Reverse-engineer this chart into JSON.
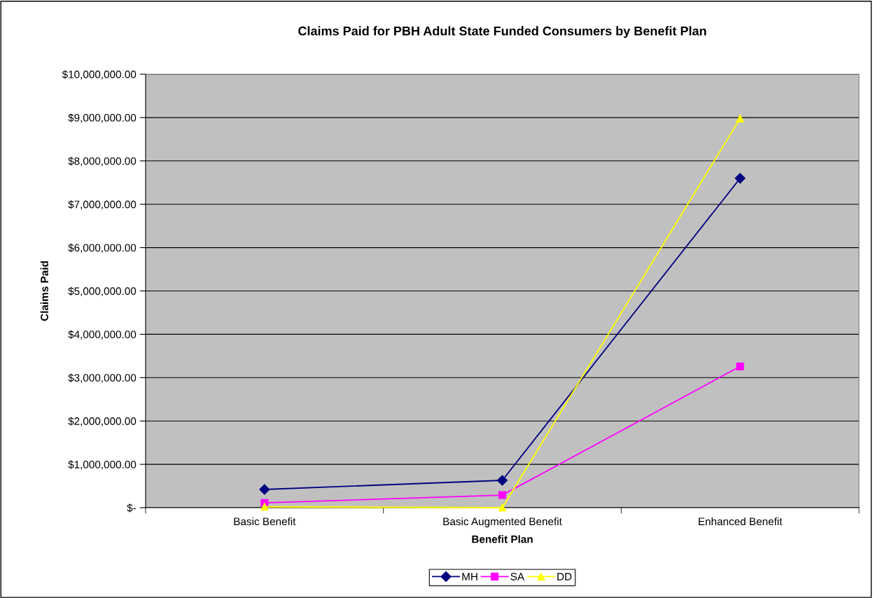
{
  "chart_data": {
    "type": "line",
    "title": "Claims Paid for PBH Adult State Funded Consumers by Benefit Plan",
    "xlabel": "Benefit Plan",
    "ylabel": "Claims Paid",
    "categories": [
      "Basic Benefit",
      "Basic Augmented Benefit",
      "Enhanced Benefit"
    ],
    "series": [
      {
        "name": "MH",
        "color": "#000080",
        "marker": "diamond",
        "values": [
          420000,
          630000,
          7600000
        ]
      },
      {
        "name": "SA",
        "color": "#ff00ff",
        "marker": "square",
        "values": [
          110000,
          290000,
          3260000
        ]
      },
      {
        "name": "DD",
        "color": "#ffff00",
        "marker": "triangle",
        "values": [
          20000,
          0,
          8980000
        ]
      }
    ],
    "ylim": [
      0,
      10000000
    ],
    "yticks": [
      {
        "value": 0,
        "label": "$-"
      },
      {
        "value": 1000000,
        "label": "$1,000,000.00"
      },
      {
        "value": 2000000,
        "label": "$2,000,000.00"
      },
      {
        "value": 3000000,
        "label": "$3,000,000.00"
      },
      {
        "value": 4000000,
        "label": "$4,000,000.00"
      },
      {
        "value": 5000000,
        "label": "$5,000,000.00"
      },
      {
        "value": 6000000,
        "label": "$6,000,000.00"
      },
      {
        "value": 7000000,
        "label": "$7,000,000.00"
      },
      {
        "value": 8000000,
        "label": "$8,000,000.00"
      },
      {
        "value": 9000000,
        "label": "$9,000,000.00"
      },
      {
        "value": 10000000,
        "label": "$10,000,000.00"
      }
    ],
    "grid": "y",
    "legend": "bottom",
    "line_style": "solid"
  }
}
